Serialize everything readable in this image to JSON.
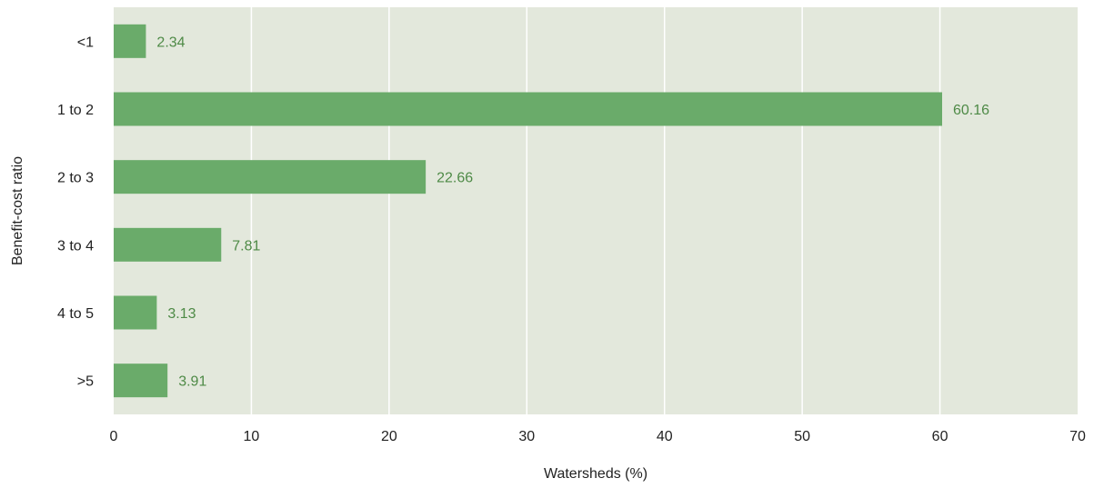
{
  "chart_data": {
    "type": "bar",
    "orientation": "horizontal",
    "title": "",
    "xlabel": "Watersheds (%)",
    "ylabel": "Benefit-cost ratio",
    "categories": [
      "<1",
      "1 to 2",
      "2 to 3",
      "3 to 4",
      "4 to 5",
      ">5"
    ],
    "values": [
      2.34,
      60.16,
      22.66,
      7.81,
      3.13,
      3.91
    ],
    "value_labels": [
      "2.34",
      "60.16",
      "22.66",
      "7.81",
      "3.13",
      "3.91"
    ],
    "xlim": [
      0,
      70
    ],
    "xticks": [
      0,
      10,
      20,
      30,
      40,
      50,
      60,
      70
    ],
    "grid": "vertical",
    "legend": "none",
    "colors": {
      "plot_background": "#e3e8dc",
      "bar": "#6aab6a",
      "value_label": "#4e8a46",
      "gridline": "#ffffff",
      "text": "#222222"
    }
  }
}
